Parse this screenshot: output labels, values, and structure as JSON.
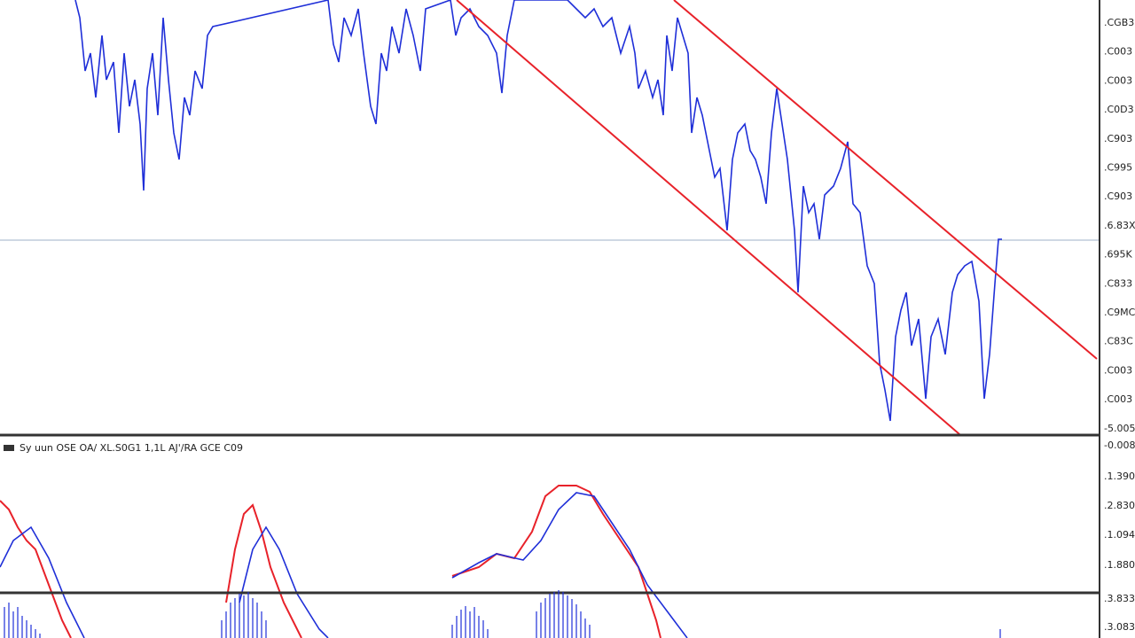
{
  "indicator_label": "Sy uun OSE OA/ XL.S0G1 1,1L AJ'/RA GCE C09",
  "price_axis": [
    ".CGB3",
    ".C003",
    ".C003",
    ".C0D3",
    ".C903",
    ".C995",
    ".C903",
    ".6.83X",
    ".695K",
    ".C833",
    ".C9MC",
    ".C83C",
    ".C003",
    ".C003",
    "-5.005"
  ],
  "indicator_axis": [
    "-0.008",
    ".1.390",
    ".2.830",
    ".1.094",
    ".1.880",
    ".3.833",
    ".3.083"
  ]
}
